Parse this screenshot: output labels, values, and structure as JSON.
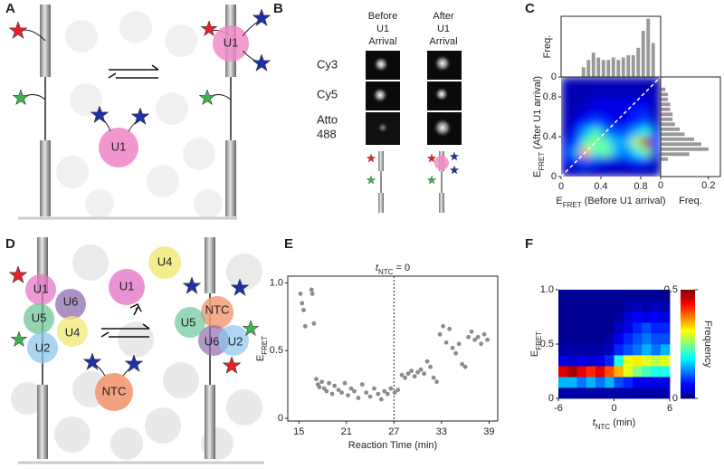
{
  "panel_labels": [
    "A",
    "B",
    "C",
    "D",
    "E",
    "F"
  ],
  "panel_a": {
    "free_protein": "U1",
    "bound_protein": "U1"
  },
  "panel_b": {
    "before": [
      "Before",
      "U1",
      "Arrival"
    ],
    "after": [
      "After",
      "U1",
      "Arrival"
    ],
    "rows": [
      [
        "Cy3"
      ],
      [
        "Cy5"
      ],
      [
        "Atto",
        "488"
      ]
    ]
  },
  "panel_d": {
    "left_complex": [
      "U1",
      "U6",
      "U5",
      "U4",
      "U2"
    ],
    "free": [
      "U1",
      "U4",
      "NTC"
    ],
    "right_complex": [
      "NTC",
      "U5",
      "U6",
      "U2"
    ]
  },
  "chart_data": [
    {
      "type": "histogram",
      "orientation": "vertical",
      "color": "#999999",
      "bins": [
        0.2,
        0.25,
        0.3,
        0.35,
        0.4,
        0.45,
        0.5,
        0.55,
        0.6,
        0.65,
        0.7,
        0.75,
        0.8,
        0.85,
        0.9,
        0.95
      ],
      "values": [
        0.04,
        0.07,
        0.1,
        0.08,
        0.07,
        0.07,
        0.08,
        0.07,
        0.08,
        0.09,
        0.09,
        0.12,
        0.19,
        0.24,
        0.14
      ],
      "xlim": [
        0,
        1
      ],
      "ylim": [
        0,
        0.25
      ],
      "yticks": [
        0
      ],
      "y_label": "Freq."
    },
    {
      "type": "heatmap",
      "smooth": true,
      "colormap": "jet",
      "zlim": [
        0,
        1
      ],
      "xlim": [
        0,
        1
      ],
      "ylim": [
        0,
        1
      ],
      "xticks": [
        0,
        0.4,
        0.8
      ],
      "yticks": [
        0,
        0.4,
        0.8
      ],
      "x_label": {
        "main": "E",
        "sub": "FRET",
        "rest": " (Before U1 arrival)"
      },
      "y_label": {
        "main": "E",
        "sub": "FRET",
        "rest": " (After U1 arrival)"
      },
      "z": [
        [
          0.05,
          0.05,
          0.05,
          0.05,
          0.05,
          0.05,
          0.05,
          0.05,
          0.05,
          0.05
        ],
        [
          0.1,
          0.15,
          0.2,
          0.15,
          0.1,
          0.1,
          0.1,
          0.15,
          0.15,
          0.05
        ],
        [
          0.1,
          0.3,
          0.7,
          0.4,
          0.5,
          0.3,
          0.25,
          0.35,
          0.5,
          0.1
        ],
        [
          0.1,
          0.2,
          0.45,
          0.5,
          0.45,
          0.3,
          0.3,
          0.55,
          0.95,
          0.2
        ],
        [
          0.05,
          0.15,
          0.3,
          0.45,
          0.25,
          0.2,
          0.2,
          0.3,
          0.4,
          0.1
        ],
        [
          0.05,
          0.1,
          0.15,
          0.2,
          0.15,
          0.1,
          0.1,
          0.15,
          0.2,
          0.05
        ],
        [
          0.05,
          0.05,
          0.1,
          0.1,
          0.1,
          0.1,
          0.1,
          0.15,
          0.15,
          0.05
        ],
        [
          0.05,
          0.05,
          0.05,
          0.1,
          0.1,
          0.1,
          0.1,
          0.1,
          0.1,
          0.05
        ],
        [
          0.05,
          0.05,
          0.05,
          0.05,
          0.05,
          0.05,
          0.05,
          0.05,
          0.05,
          0.05
        ],
        [
          0.05,
          0.05,
          0.05,
          0.05,
          0.05,
          0.05,
          0.05,
          0.05,
          0.05,
          0.05
        ]
      ]
    },
    {
      "type": "histogram",
      "orientation": "horizontal",
      "color": "#999999",
      "bins": [
        0.15,
        0.2,
        0.25,
        0.3,
        0.35,
        0.4,
        0.45,
        0.5,
        0.55,
        0.6,
        0.65,
        0.7,
        0.75,
        0.8,
        0.85,
        0.9
      ],
      "values": [
        0.03,
        0.12,
        0.2,
        0.17,
        0.14,
        0.1,
        0.08,
        0.06,
        0.05,
        0.05,
        0.04,
        0.04,
        0.03,
        0.03,
        0.02
      ],
      "xlim": [
        0,
        0.25
      ],
      "ylim": [
        0,
        1
      ],
      "xticks": [
        0,
        0.2
      ],
      "x_label": "Freq."
    },
    {
      "type": "scatter",
      "color": "#8c8c8c",
      "title": {
        "main": "t",
        "sub": "NTC",
        "rest": " = 0"
      },
      "italic": true,
      "x": [
        15.2,
        15.4,
        15.6,
        15.8,
        16.6,
        16.7,
        16.9,
        17.2,
        17.4,
        17.6,
        17.9,
        18.2,
        18.5,
        18.8,
        19.2,
        19.5,
        20,
        20.4,
        20.8,
        21.2,
        21.6,
        22,
        22.5,
        23,
        23.5,
        24,
        24.5,
        25,
        25.4,
        25.8,
        26.2,
        26.6,
        27.1,
        27.5,
        28,
        28.4,
        28.8,
        29.2,
        29.6,
        30,
        30.4,
        30.8,
        31.2,
        31.6,
        32,
        32.4,
        32.8,
        33.2,
        33.6,
        34,
        34.4,
        34.8,
        35.2,
        35.6,
        36,
        36.4,
        36.8,
        37.2,
        37.6,
        38,
        38.4,
        38.8
      ],
      "values": [
        0.92,
        0.85,
        0.8,
        0.68,
        0.95,
        0.92,
        0.7,
        0.29,
        0.25,
        0.23,
        0.27,
        0.22,
        0.2,
        0.26,
        0.18,
        0.24,
        0.21,
        0.19,
        0.26,
        0.17,
        0.22,
        0.2,
        0.15,
        0.25,
        0.19,
        0.16,
        0.22,
        0.18,
        0.14,
        0.2,
        0.18,
        0.22,
        0.19,
        0.21,
        0.32,
        0.3,
        0.33,
        0.35,
        0.31,
        0.34,
        0.36,
        0.33,
        0.42,
        0.38,
        0.3,
        0.27,
        0.62,
        0.68,
        0.56,
        0.66,
        0.52,
        0.48,
        0.55,
        0.4,
        0.38,
        0.6,
        0.64,
        0.58,
        0.6,
        0.55,
        0.62,
        0.58
      ],
      "vline": 27,
      "xlim": [
        13.6,
        40.1
      ],
      "ylim": [
        -0.02,
        1.05
      ],
      "xticks": [
        15,
        21,
        27,
        33,
        39
      ],
      "yticks": [
        0,
        0.5,
        {
          "value": 1,
          "label": "1.0"
        }
      ],
      "x_label": "Reaction Time (min)",
      "y_label": {
        "main": "E",
        "sub": "FRET"
      }
    },
    {
      "type": "heatmap",
      "smooth": false,
      "colormap": "jet",
      "zlim": [
        0,
        0.5
      ],
      "colorbar": true,
      "zticks": [
        0,
        0.5
      ],
      "colorbar_label": "Frequency",
      "xlim": [
        -6,
        6
      ],
      "ylim": [
        0,
        1
      ],
      "xticks": [
        -6,
        0,
        6
      ],
      "yticks": [
        0,
        0.5,
        {
          "value": 1,
          "label": "1.0"
        }
      ],
      "x_label": {
        "main": "t",
        "sub": "NTC",
        "rest": " (min)"
      },
      "italic": true,
      "y_label": {
        "main": "E",
        "sub": "FRET"
      },
      "z": [
        [
          0.02,
          0.02,
          0.02,
          0.02,
          0.02,
          0.02,
          0.02,
          0.02,
          0.02,
          0.02,
          0.02,
          0.02
        ],
        [
          0.15,
          0.15,
          0.12,
          0.15,
          0.12,
          0.15,
          0.1,
          0.08,
          0.06,
          0.05,
          0.05,
          0.05
        ],
        [
          0.45,
          0.48,
          0.45,
          0.42,
          0.45,
          0.4,
          0.35,
          0.3,
          0.25,
          0.22,
          0.2,
          0.2
        ],
        [
          0.05,
          0.04,
          0.05,
          0.04,
          0.05,
          0.08,
          0.2,
          0.3,
          0.32,
          0.3,
          0.28,
          0.3
        ],
        [
          0.02,
          0.02,
          0.02,
          0.02,
          0.02,
          0.03,
          0.08,
          0.1,
          0.12,
          0.15,
          0.12,
          0.15
        ],
        [
          0.01,
          0.01,
          0.01,
          0.01,
          0.01,
          0.02,
          0.05,
          0.08,
          0.1,
          0.12,
          0.1,
          0.1
        ],
        [
          0.01,
          0.01,
          0.01,
          0.01,
          0.01,
          0.01,
          0.03,
          0.05,
          0.08,
          0.1,
          0.08,
          0.08
        ],
        [
          0.01,
          0.01,
          0.01,
          0.01,
          0.01,
          0.01,
          0.02,
          0.04,
          0.06,
          0.05,
          0.06,
          0.05
        ],
        [
          0.01,
          0.01,
          0.01,
          0.01,
          0.01,
          0.01,
          0.01,
          0.02,
          0.03,
          0.02,
          0.03,
          0.02
        ],
        [
          0.01,
          0.01,
          0.01,
          0.01,
          0.01,
          0.01,
          0.01,
          0.01,
          0.01,
          0.01,
          0.01,
          0.01
        ]
      ]
    }
  ]
}
